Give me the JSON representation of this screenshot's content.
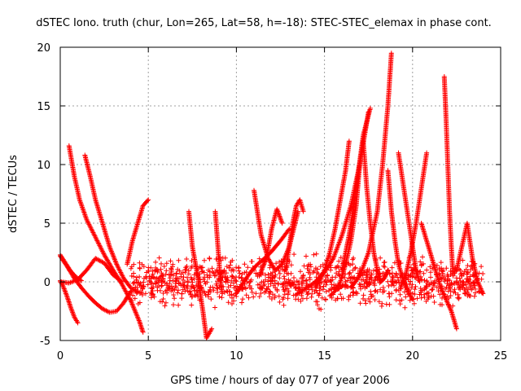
{
  "chart_data": {
    "type": "scatter",
    "title": "dSTEC Iono. truth (chur, Lon=265, Lat=58, h=-18): STEC-STEC_elemax in phase cont.",
    "xlabel": "GPS time / hours of day 077 of year 2006",
    "ylabel": "dSTEC  / TECUs",
    "xlim": [
      0,
      25
    ],
    "ylim": [
      -5,
      20
    ],
    "xticks": [
      0,
      5,
      10,
      15,
      20,
      25
    ],
    "yticks": [
      -5,
      0,
      5,
      10,
      15,
      20
    ],
    "grid": true,
    "marker": "+",
    "color": "#ff0000",
    "arcs": [
      {
        "x": [
          0.0,
          0.3,
          0.6,
          0.9,
          1.2
        ],
        "y": [
          2.3,
          1.6,
          0.9,
          0.4,
          0.1
        ]
      },
      {
        "x": [
          0.0,
          0.2,
          0.4,
          0.6,
          0.8,
          1.0
        ],
        "y": [
          0.1,
          -0.5,
          -1.3,
          -2.2,
          -3.0,
          -3.5
        ]
      },
      {
        "x": [
          0.5,
          0.8,
          1.1,
          1.5,
          2.0,
          2.5,
          3.0,
          3.5,
          4.0,
          4.5,
          4.7
        ],
        "y": [
          11.6,
          9.0,
          7.0,
          5.3,
          3.8,
          2.3,
          1.0,
          -0.2,
          -1.6,
          -3.4,
          -4.3
        ]
      },
      {
        "x": [
          0.0,
          0.4,
          0.8,
          1.2,
          1.6,
          2.0,
          2.4,
          2.8,
          3.2,
          3.6,
          4.0
        ],
        "y": [
          2.2,
          1.3,
          0.3,
          -0.5,
          -1.2,
          -1.8,
          -2.3,
          -2.6,
          -2.5,
          -1.8,
          -0.8
        ]
      },
      {
        "x": [
          0.0,
          0.5,
          1.0,
          1.5,
          2.0,
          2.5,
          3.0,
          3.5
        ],
        "y": [
          0.0,
          -0.1,
          0.2,
          1.0,
          2.0,
          1.6,
          0.6,
          0.0
        ]
      },
      {
        "x": [
          1.4,
          1.7,
          2.0,
          2.4,
          2.8,
          3.2,
          3.6,
          4.0,
          4.4
        ],
        "y": [
          10.8,
          9.0,
          7.0,
          5.0,
          3.0,
          1.5,
          0.3,
          -0.5,
          -0.9
        ]
      },
      {
        "x": [
          3.8,
          4.1,
          4.4,
          4.7,
          5.0
        ],
        "y": [
          1.5,
          3.5,
          5.0,
          6.5,
          7.0
        ]
      },
      {
        "x": [
          7.3,
          7.5,
          7.8,
          8.1,
          8.3,
          8.6
        ],
        "y": [
          6.0,
          3.0,
          0.5,
          -2.5,
          -4.8,
          -4.0
        ]
      },
      {
        "x": [
          8.8,
          8.9,
          9.0,
          9.1,
          9.2
        ],
        "y": [
          6.0,
          4.0,
          2.0,
          0.0,
          -1.0
        ]
      },
      {
        "x": [
          10.0,
          10.3,
          10.6,
          10.9,
          11.2,
          11.6,
          12.0,
          12.5,
          13.0
        ],
        "y": [
          -1.0,
          -0.3,
          0.4,
          1.0,
          1.5,
          2.0,
          2.6,
          3.5,
          4.5
        ]
      },
      {
        "x": [
          11.0,
          11.4,
          11.8,
          12.2,
          12.6,
          13.0,
          13.5
        ],
        "y": [
          7.8,
          4.0,
          2.0,
          1.0,
          1.5,
          3.0,
          6.0
        ]
      },
      {
        "x": [
          11.3,
          11.7,
          12.0,
          12.3,
          12.6
        ],
        "y": [
          0.5,
          2.0,
          4.5,
          6.2,
          5.0
        ]
      },
      {
        "x": [
          12.8,
          13.0,
          13.2,
          13.4,
          13.6,
          13.8
        ],
        "y": [
          1.0,
          3.0,
          5.0,
          6.5,
          7.0,
          6.0
        ]
      },
      {
        "x": [
          13.5,
          14.0,
          14.5,
          15.0,
          15.5,
          16.0,
          16.5,
          17.0,
          17.5
        ],
        "y": [
          -1.0,
          -0.5,
          0.0,
          0.8,
          2.0,
          4.0,
          6.5,
          10.0,
          14.5
        ]
      },
      {
        "x": [
          14.5,
          15.0,
          15.3,
          15.6,
          15.9,
          16.2,
          16.4
        ],
        "y": [
          -0.5,
          1.0,
          2.5,
          4.5,
          7.0,
          9.5,
          12.0
        ]
      },
      {
        "x": [
          15.3,
          15.6,
          15.9,
          16.2,
          16.5,
          16.8,
          17.0
        ],
        "y": [
          -1.2,
          -0.8,
          0.0,
          1.5,
          3.5,
          6.5,
          10.0
        ]
      },
      {
        "x": [
          16.5,
          17.0,
          17.5,
          18.0,
          18.3,
          18.6,
          18.8
        ],
        "y": [
          -0.5,
          0.5,
          2.5,
          6.0,
          10.0,
          15.0,
          19.5
        ]
      },
      {
        "x": [
          16.0,
          16.4,
          16.8,
          17.2,
          17.6
        ],
        "y": [
          1.0,
          4.0,
          8.0,
          12.5,
          14.8
        ]
      },
      {
        "x": [
          17.2,
          17.4,
          17.6,
          17.8,
          18.0,
          18.2,
          18.4,
          18.6
        ],
        "y": [
          12.0,
          8.0,
          5.0,
          2.5,
          1.0,
          0.0,
          0.3,
          1.0
        ]
      },
      {
        "x": [
          18.6,
          18.8,
          19.0,
          19.2,
          19.4,
          19.6,
          19.8,
          20.0
        ],
        "y": [
          9.5,
          6.0,
          3.5,
          1.5,
          0.5,
          -0.3,
          -1.0,
          -1.5
        ]
      },
      {
        "x": [
          19.2,
          19.4,
          19.6,
          19.8,
          20.0,
          20.2,
          20.4
        ],
        "y": [
          11.0,
          9.0,
          7.0,
          5.0,
          3.0,
          1.0,
          0.0
        ]
      },
      {
        "x": [
          19.3,
          19.6,
          19.9,
          20.2,
          20.5,
          20.8
        ],
        "y": [
          -0.5,
          0.5,
          2.5,
          5.0,
          8.0,
          11.0
        ]
      },
      {
        "x": [
          20.5,
          20.9,
          21.3,
          21.6,
          21.9,
          22.2,
          22.5
        ],
        "y": [
          5.0,
          3.0,
          1.0,
          -0.5,
          -1.5,
          -2.5,
          -4.0
        ]
      },
      {
        "x": [
          21.8,
          21.9,
          22.0,
          22.1,
          22.2,
          22.3
        ],
        "y": [
          17.5,
          14.0,
          10.0,
          6.0,
          3.0,
          0.5
        ]
      },
      {
        "x": [
          22.5,
          22.8,
          23.1,
          23.4,
          23.7,
          24.0
        ],
        "y": [
          1.0,
          3.0,
          5.0,
          2.0,
          0.0,
          -1.0
        ]
      }
    ],
    "noise_segments": [
      {
        "x_start": 4.0,
        "x_end": 24.0,
        "y_center": 0.0,
        "spread": 1.3
      }
    ]
  }
}
